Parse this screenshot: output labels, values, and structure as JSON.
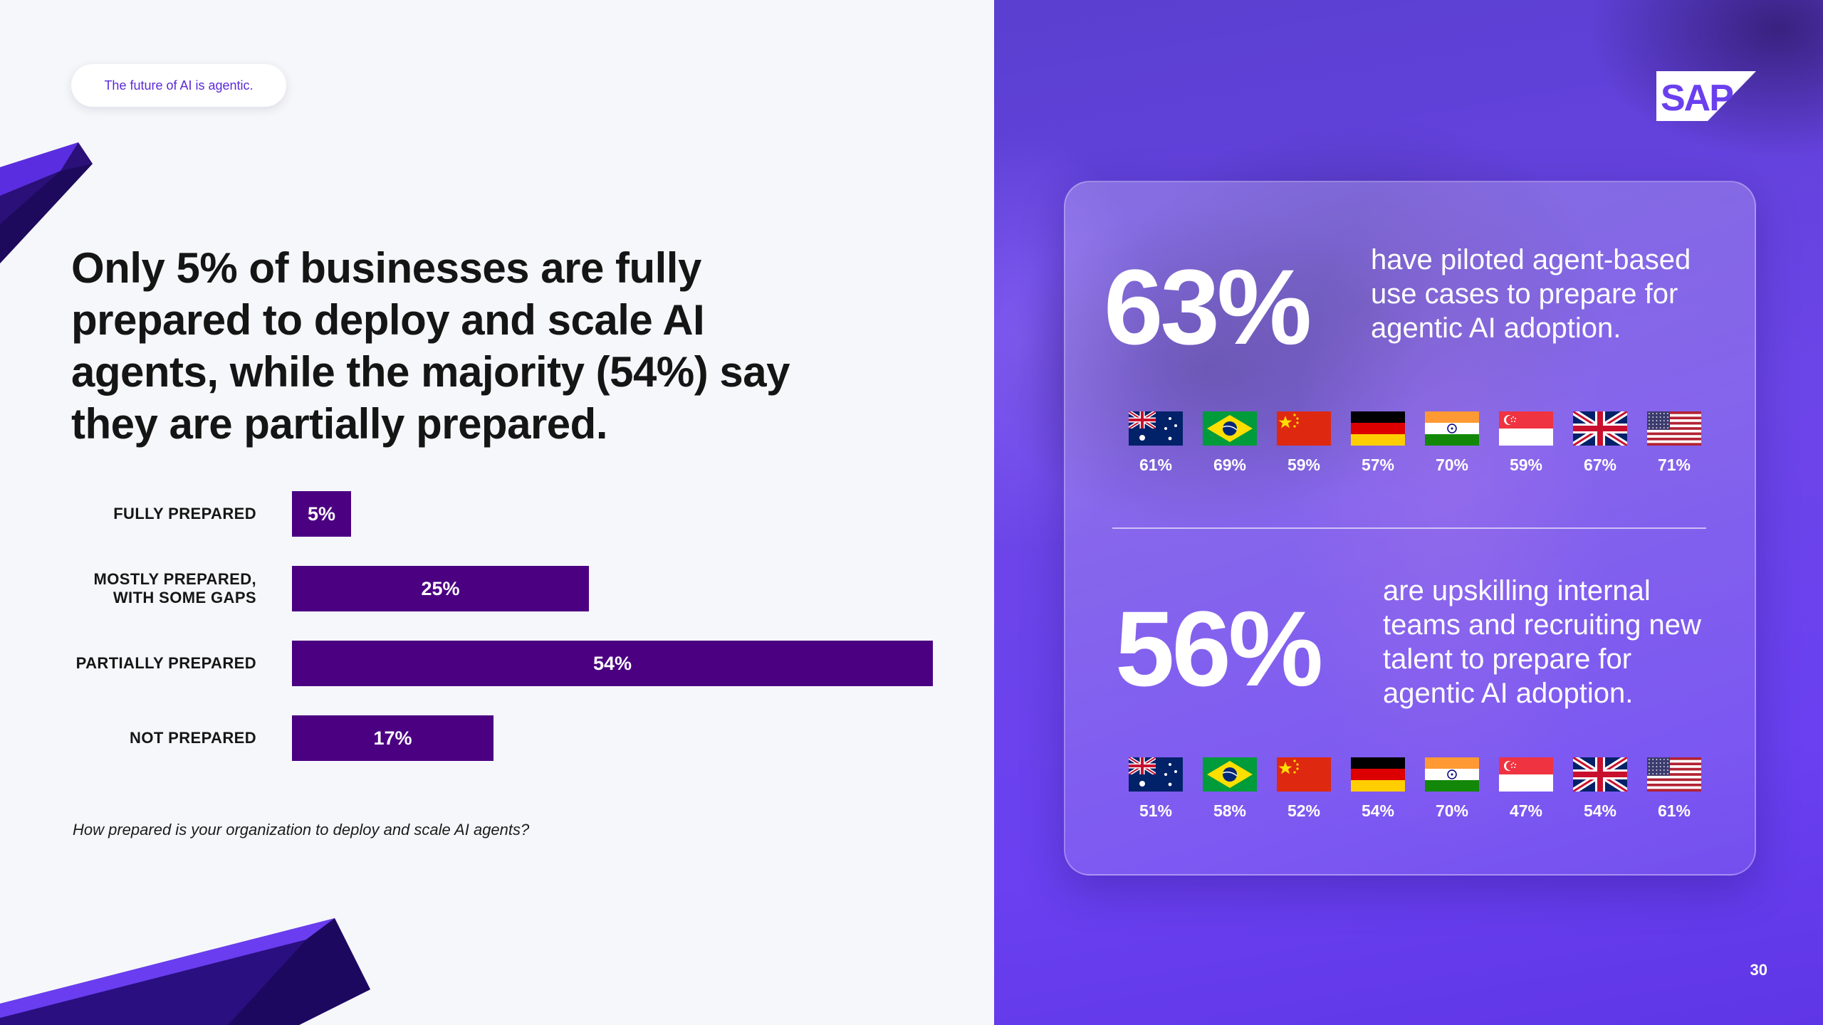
{
  "tagline": "The future of AI is agentic.",
  "headline": "Only 5% of businesses are fully prepared to deploy and scale AI agents, while the majority (54%) say they are partially prepared.",
  "chart_data": {
    "type": "bar",
    "orientation": "horizontal",
    "categories": [
      "FULLY PREPARED",
      "MOSTLY PREPARED,\nWITH SOME GAPS",
      "PARTIALLY PREPARED",
      "NOT PREPARED"
    ],
    "values": [
      5,
      25,
      54,
      17
    ],
    "value_labels": [
      "5%",
      "25%",
      "54%",
      "17%"
    ],
    "unit": "%",
    "xlim": [
      0,
      54
    ],
    "bar_color": "#4b0082",
    "caption": "How prepared is your organization to deploy and scale AI agents?"
  },
  "brand": {
    "logo": "SAP",
    "accent": "#6a3ff0"
  },
  "stats": [
    {
      "value": "63%",
      "text": "have piloted agent-based use cases to prepare for agentic AI adoption.",
      "countries": [
        {
          "flag": "australia-flag",
          "pct": "61%"
        },
        {
          "flag": "brazil-flag",
          "pct": "69%"
        },
        {
          "flag": "china-flag",
          "pct": "59%"
        },
        {
          "flag": "germany-flag",
          "pct": "57%"
        },
        {
          "flag": "india-flag",
          "pct": "70%"
        },
        {
          "flag": "singapore-flag",
          "pct": "59%"
        },
        {
          "flag": "uk-flag",
          "pct": "67%"
        },
        {
          "flag": "usa-flag",
          "pct": "71%"
        }
      ]
    },
    {
      "value": "56%",
      "text": "are upskilling internal teams and recruiting new talent to prepare for agentic AI adoption.",
      "countries": [
        {
          "flag": "australia-flag",
          "pct": "51%"
        },
        {
          "flag": "brazil-flag",
          "pct": "58%"
        },
        {
          "flag": "china-flag",
          "pct": "52%"
        },
        {
          "flag": "germany-flag",
          "pct": "54%"
        },
        {
          "flag": "india-flag",
          "pct": "70%"
        },
        {
          "flag": "singapore-flag",
          "pct": "47%"
        },
        {
          "flag": "uk-flag",
          "pct": "54%"
        },
        {
          "flag": "usa-flag",
          "pct": "61%"
        }
      ]
    }
  ],
  "page_number": "30"
}
